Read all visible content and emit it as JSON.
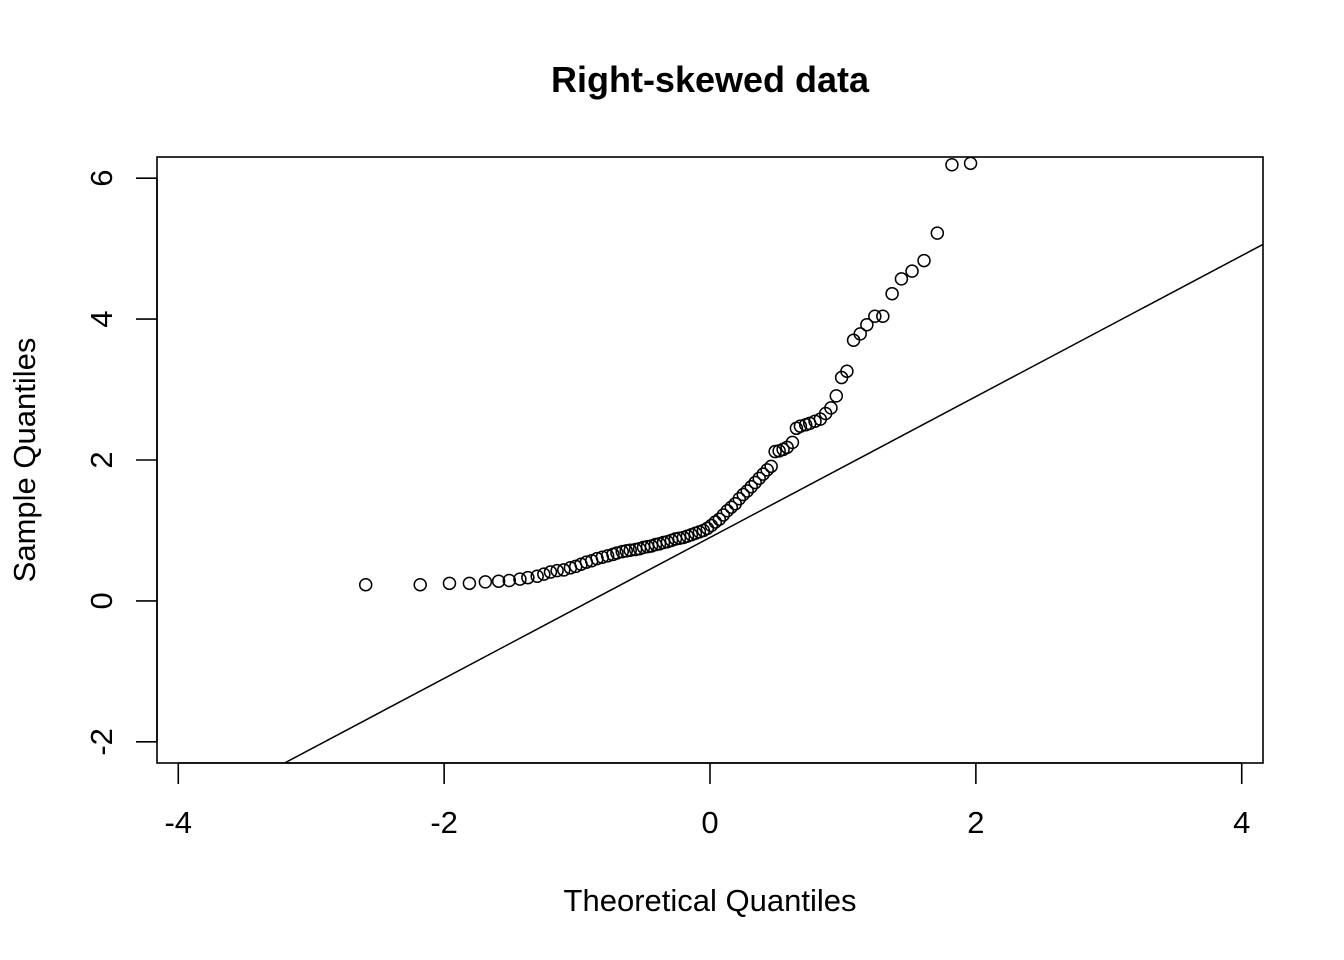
{
  "chart_data": {
    "type": "scatter",
    "title": "Right-skewed data",
    "xlabel": "Theoretical Quantiles",
    "ylabel": "Sample Quantiles",
    "xlim": [
      -4.16,
      4.16
    ],
    "ylim": [
      -2.3,
      6.3
    ],
    "xticks": [
      -4,
      -2,
      0,
      2,
      4
    ],
    "xtick_labels": [
      "-4",
      "-2",
      "0",
      "2",
      "4"
    ],
    "yticks": [
      -2,
      0,
      2,
      4,
      6
    ],
    "ytick_labels": [
      "-2",
      "0",
      "2",
      "4",
      "6"
    ],
    "grid": false,
    "reference_line": {
      "slope": 1.0,
      "intercept": 0.9
    },
    "points": {
      "x": [
        -2.59,
        -2.18,
        -1.96,
        -1.81,
        -1.69,
        -1.59,
        -1.51,
        -1.43,
        -1.37,
        -1.3,
        -1.25,
        -1.2,
        -1.15,
        -1.1,
        -1.05,
        -1.01,
        -0.97,
        -0.93,
        -0.89,
        -0.85,
        -0.81,
        -0.77,
        -0.73,
        -0.7,
        -0.66,
        -0.63,
        -0.6,
        -0.56,
        -0.53,
        -0.5,
        -0.47,
        -0.44,
        -0.41,
        -0.38,
        -0.35,
        -0.32,
        -0.29,
        -0.26,
        -0.23,
        -0.2,
        -0.17,
        -0.14,
        -0.11,
        -0.08,
        -0.05,
        -0.02,
        0.01,
        0.04,
        0.07,
        0.1,
        0.13,
        0.16,
        0.19,
        0.22,
        0.25,
        0.28,
        0.31,
        0.34,
        0.37,
        0.4,
        0.43,
        0.46,
        0.49,
        0.52,
        0.55,
        0.58,
        0.62,
        0.65,
        0.68,
        0.72,
        0.75,
        0.79,
        0.83,
        0.87,
        0.91,
        0.95,
        0.99,
        1.03,
        1.08,
        1.13,
        1.18,
        1.24,
        1.3,
        1.37,
        1.44,
        1.52,
        1.61,
        1.71,
        1.82,
        1.96
      ],
      "y": [
        0.23,
        0.23,
        0.25,
        0.25,
        0.27,
        0.28,
        0.29,
        0.31,
        0.33,
        0.35,
        0.38,
        0.41,
        0.43,
        0.44,
        0.47,
        0.49,
        0.52,
        0.55,
        0.57,
        0.6,
        0.62,
        0.64,
        0.66,
        0.68,
        0.7,
        0.71,
        0.72,
        0.73,
        0.74,
        0.76,
        0.77,
        0.78,
        0.8,
        0.81,
        0.83,
        0.84,
        0.86,
        0.88,
        0.89,
        0.9,
        0.92,
        0.94,
        0.96,
        0.98,
        1.0,
        1.03,
        1.07,
        1.12,
        1.16,
        1.22,
        1.28,
        1.33,
        1.38,
        1.45,
        1.51,
        1.56,
        1.62,
        1.68,
        1.74,
        1.8,
        1.86,
        1.91,
        2.12,
        2.13,
        2.15,
        2.18,
        2.25,
        2.45,
        2.48,
        2.5,
        2.52,
        2.55,
        2.58,
        2.66,
        2.74,
        2.91,
        3.17,
        3.26,
        3.7,
        3.79,
        3.92,
        4.04,
        4.04,
        4.36,
        4.57,
        4.68,
        4.83,
        5.22,
        6.19,
        6.21
      ]
    }
  }
}
